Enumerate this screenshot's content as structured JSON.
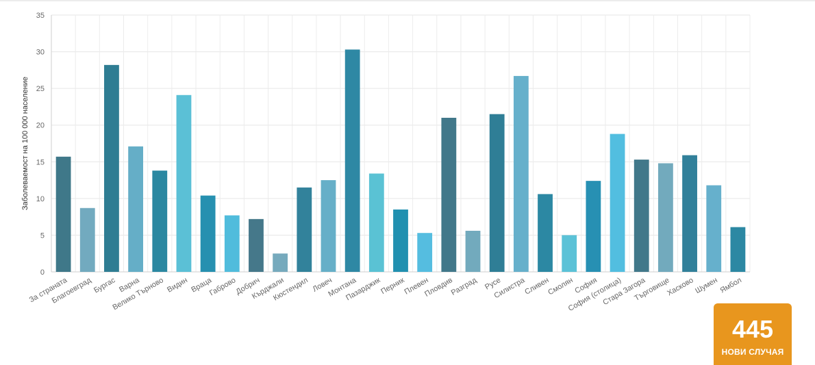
{
  "chart_data": {
    "type": "bar",
    "ylabel": "Заболеваемост на 100 000 население",
    "xlabel": "",
    "ylim": [
      0,
      35
    ],
    "yticks": [
      0,
      5,
      10,
      15,
      20,
      25,
      30,
      35
    ],
    "grid": true,
    "categories": [
      "За страната",
      "Благоевград",
      "Бургас",
      "Варна",
      "Велико Търново",
      "Видин",
      "Враца",
      "Габрово",
      "Добрич",
      "Кърджали",
      "Кюстендил",
      "Ловеч",
      "Монтана",
      "Пазарджик",
      "Перник",
      "Плевен",
      "Пловдив",
      "Разград",
      "Русе",
      "Силистра",
      "Сливен",
      "Смолян",
      "София",
      "София (столица)",
      "Стара Загора",
      "Търговище",
      "Хасково",
      "Шумен",
      "Ямбол"
    ],
    "values": [
      15.7,
      8.7,
      28.2,
      17.1,
      13.8,
      24.1,
      10.4,
      7.7,
      7.2,
      2.5,
      11.5,
      12.5,
      30.3,
      13.4,
      8.5,
      5.3,
      21.0,
      5.6,
      21.5,
      26.7,
      10.6,
      5.0,
      12.4,
      18.8,
      15.3,
      14.8,
      15.9,
      11.8,
      6.1
    ],
    "colors": [
      "#3f7889",
      "#72aabf",
      "#2f7d93",
      "#65aec7",
      "#2b88a1",
      "#5bc0d6",
      "#2690b0",
      "#50bcdc",
      "#45788a",
      "#76aabd",
      "#32829b",
      "#66afc8",
      "#2e88a4",
      "#5ac2d4",
      "#2190b0",
      "#55bde0",
      "#41788a",
      "#72aabd",
      "#2f7e96",
      "#66b0cb",
      "#2c88a3",
      "#5bc2d7",
      "#2790b3",
      "#52bee0",
      "#41788a",
      "#72aabd",
      "#31809a",
      "#66b0cc",
      "#2c88a3"
    ]
  },
  "stats_card": {
    "number": "445",
    "label": "НОВИ СЛУЧАЯ",
    "color": "#e8961e"
  }
}
